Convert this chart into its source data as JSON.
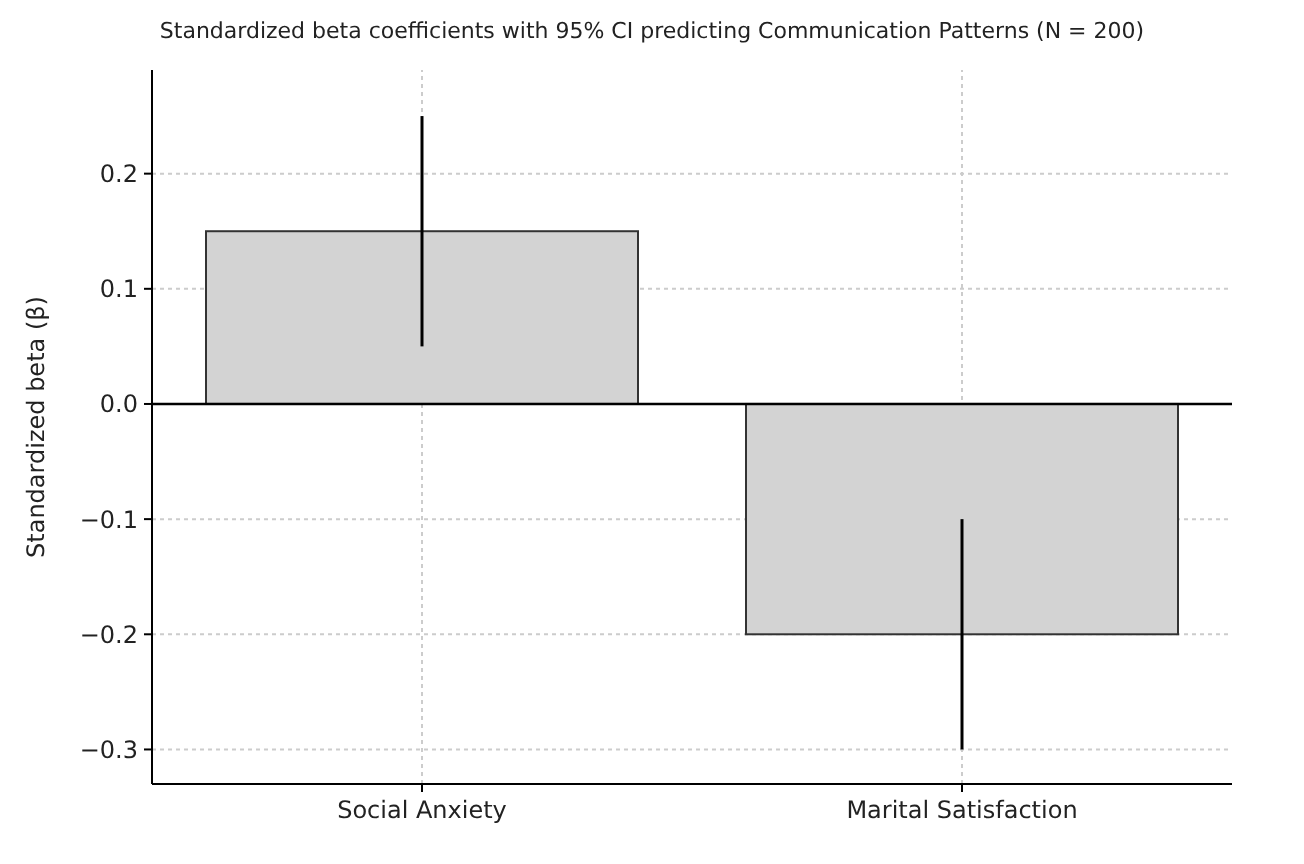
{
  "chart_data": {
    "type": "bar",
    "title": "Standardized beta coefficients with 95% CI predicting Communication Patterns (N = 200)",
    "ylabel": "Standardized beta (β)",
    "categories": [
      "Social Anxiety",
      "Marital Satisfaction"
    ],
    "values": [
      0.15,
      -0.2
    ],
    "errors": [
      [
        0.05,
        0.25
      ],
      [
        -0.3,
        -0.1
      ]
    ],
    "color": "#d3d3d3",
    "ylim": [
      -0.33,
      0.29
    ],
    "yticks": [
      {
        "value": -0.3,
        "label": "−0.3"
      },
      {
        "value": -0.2,
        "label": "−0.2"
      },
      {
        "value": -0.1,
        "label": "−0.1"
      },
      {
        "value": 0,
        "label": "0.0"
      },
      {
        "value": 0.1,
        "label": "0.1"
      },
      {
        "value": 0.2,
        "label": "0.2"
      }
    ],
    "grid": true,
    "ref_lines": [
      {
        "axis": "y",
        "value": 0,
        "color": "#000000"
      }
    ]
  }
}
